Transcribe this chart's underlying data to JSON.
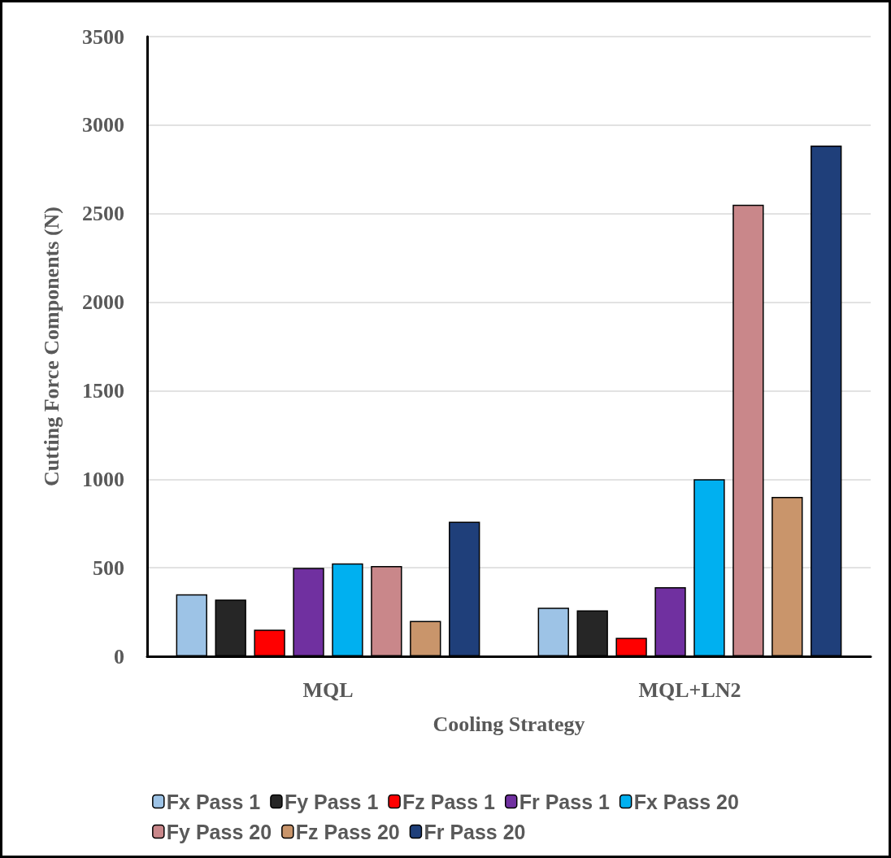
{
  "chart_data": {
    "type": "bar",
    "xlabel": "Cooling Strategy",
    "ylabel": "Cutting Force Components (N)",
    "categories": [
      "MQL",
      "MQL+LN2"
    ],
    "series": [
      {
        "name": "Fx Pass 1",
        "color": "#9dc3e6",
        "values": [
          350,
          275
        ]
      },
      {
        "name": "Fy Pass 1",
        "color": "#262626",
        "values": [
          320,
          260
        ]
      },
      {
        "name": "Fz Pass 1",
        "color": "#ff0000",
        "values": [
          150,
          105
        ]
      },
      {
        "name": "Fr Pass 1",
        "color": "#7030a0",
        "values": [
          500,
          390
        ]
      },
      {
        "name": "Fx Pass 20",
        "color": "#00b0f0",
        "values": [
          525,
          1000
        ]
      },
      {
        "name": "Fy Pass 20",
        "color": "#c9878a",
        "values": [
          510,
          2550
        ]
      },
      {
        "name": "Fz Pass 20",
        "color": "#c9956b",
        "values": [
          200,
          900
        ]
      },
      {
        "name": "Fr Pass 20",
        "color": "#1f3f7a",
        "values": [
          760,
          2885
        ]
      }
    ],
    "ylim": [
      0,
      3500
    ],
    "yticks": [
      0,
      500,
      1000,
      1500,
      2000,
      2500,
      3000,
      3500
    ],
    "grid": "y",
    "legend": "bottom"
  }
}
